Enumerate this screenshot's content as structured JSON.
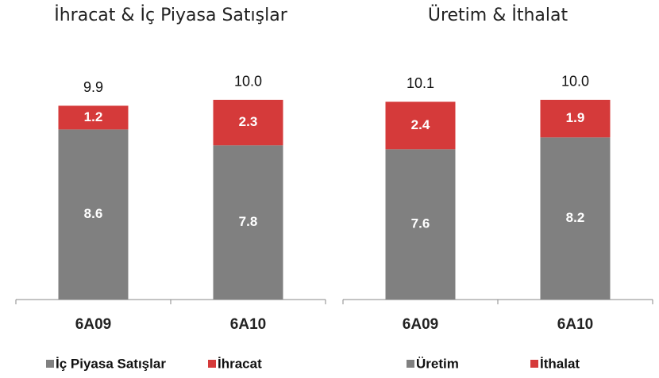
{
  "chart_data": [
    {
      "type": "stacked-bar",
      "title": "İhracat & İç Piyasa Satışlar",
      "categories": [
        "6A09",
        "6A10"
      ],
      "series": [
        {
          "name": "İç Piyasa Satışlar",
          "color": "#808080",
          "values": [
            8.6,
            7.8
          ]
        },
        {
          "name": "İhracat",
          "color": "#d53a3a",
          "values": [
            1.2,
            2.3
          ]
        }
      ],
      "totals": [
        9.9,
        10.0
      ],
      "total_labels": [
        "9.9",
        "10.0"
      ],
      "ylim": [
        0,
        11.5
      ]
    },
    {
      "type": "stacked-bar",
      "title": "Üretim & İthalat",
      "categories": [
        "6A09",
        "6A10"
      ],
      "series": [
        {
          "name": "Üretim",
          "color": "#808080",
          "values": [
            7.6,
            8.2
          ]
        },
        {
          "name": "İthalat",
          "color": "#d53a3a",
          "values": [
            2.4,
            1.9
          ]
        }
      ],
      "totals": [
        10.1,
        10.0
      ],
      "total_labels": [
        "10.1",
        "10.0"
      ],
      "ylim": [
        0,
        11.5
      ]
    }
  ]
}
